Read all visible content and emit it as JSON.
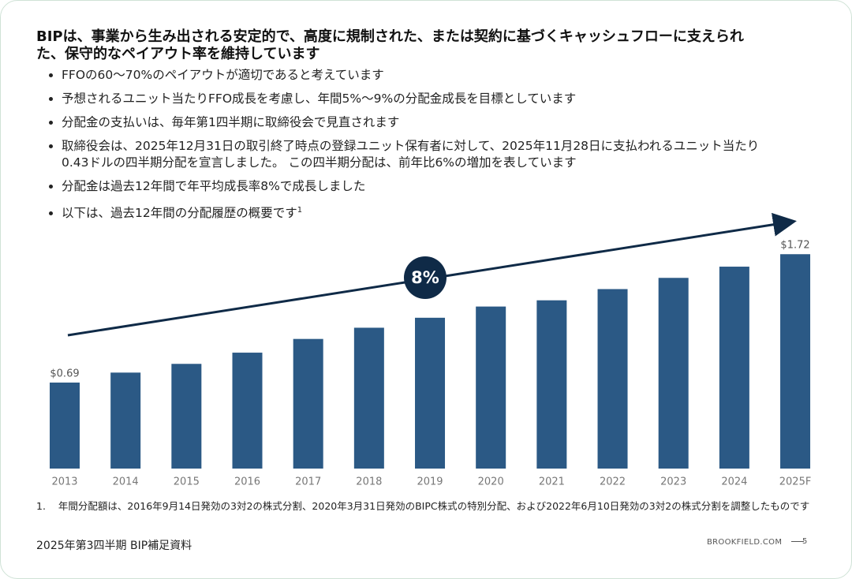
{
  "title": "BIPは、事業から生み出される安定的で、高度に規制された、または契約に基づくキャッシュフローに支えられた、保守的なペイアウト率を維持しています",
  "bullets": [
    "FFOの60～70%のペイアウトが適切であると考えています",
    "予想されるユニット当たりFFO成長を考慮し、年間5%～9%の分配金成長を目標としています",
    "分配金の支払いは、毎年第1四半期に取締役会で見直されます",
    "取締役会は、2025年12月31日の取引終了時点の登録ユニット保有者に対して、2025年11月28日に支払われるユニット当たり0.43ドルの四半期分配を宣言しました。 この四半期分配は、前年比6%の増加を表しています",
    "分配金は過去12年間で年平均成長率8%で成長しました",
    "以下は、過去12年間の分配履歴の概要です"
  ],
  "bullet_sup": "1",
  "chart_data": {
    "type": "bar",
    "categories": [
      "2013",
      "2014",
      "2015",
      "2016",
      "2017",
      "2018",
      "2019",
      "2020",
      "2021",
      "2022",
      "2023",
      "2024",
      "2025F"
    ],
    "values": [
      0.69,
      0.77,
      0.84,
      0.93,
      1.04,
      1.13,
      1.21,
      1.3,
      1.35,
      1.44,
      1.53,
      1.62,
      1.72
    ],
    "value_labels": [
      "$0.69",
      null,
      null,
      null,
      null,
      null,
      null,
      null,
      null,
      null,
      null,
      null,
      "$1.72"
    ],
    "color": "#2b5985",
    "annotation": "8%"
  },
  "footnote": {
    "number": "1.",
    "text": "年間分配額は、2016年9月14日発効の3対2の株式分割、2020年3月31日発効のBIPC株式の特別分配、および2022年6月10日発効の3対2の株式分割を調整したものです"
  },
  "footer": {
    "left": "2025年第3四半期 BIP補足資料",
    "site": "BROOKFIELD.COM",
    "page": "5"
  }
}
